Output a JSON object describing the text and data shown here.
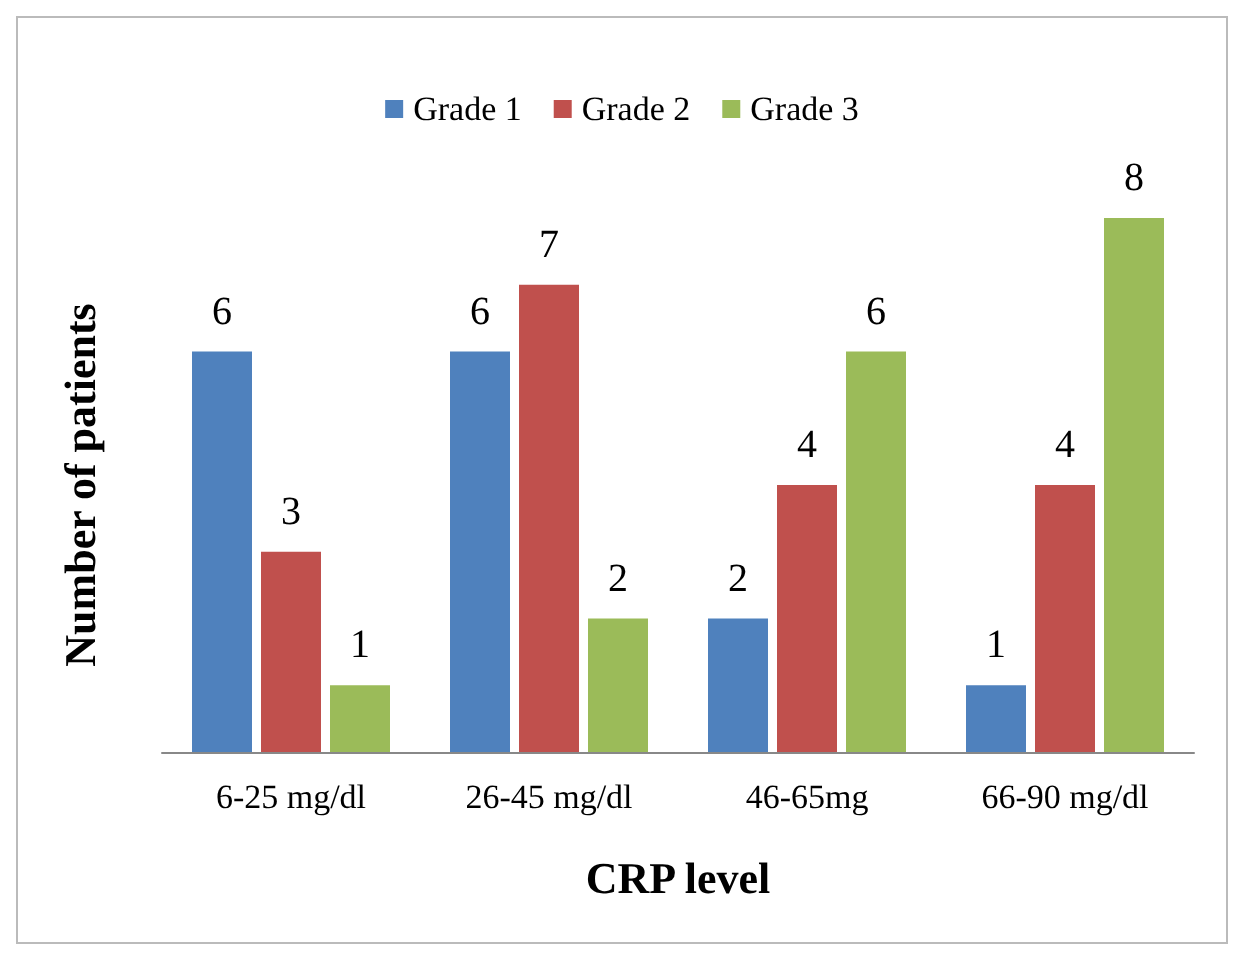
{
  "chart_data": {
    "type": "bar",
    "xlabel": "CRP level",
    "ylabel": "Number of patients",
    "categories": [
      "6-25 mg/dl",
      "26-45 mg/dl",
      "46-65mg",
      "66-90 mg/dl"
    ],
    "series": [
      {
        "name": "Grade 1",
        "color": "#4f81bd",
        "values": [
          6,
          6,
          2,
          1
        ]
      },
      {
        "name": "Grade 2",
        "color": "#c0504d",
        "values": [
          3,
          7,
          4,
          4
        ]
      },
      {
        "name": "Grade 3",
        "color": "#9bbb59",
        "values": [
          1,
          2,
          6,
          8
        ]
      }
    ],
    "data_labels": true,
    "legend": "top",
    "grid": false
  }
}
